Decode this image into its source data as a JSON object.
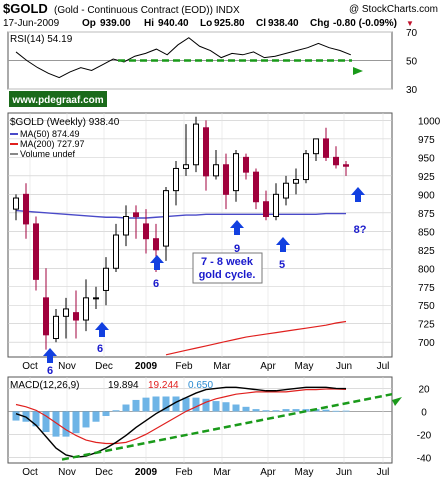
{
  "header": {
    "symbol": "$GOLD",
    "description": "(Gold - Continuous Contract (EOD)) INDX",
    "logo": "@ StockCharts.com",
    "date": "17-Jun-2009",
    "open_label": "Op",
    "open": "939.00",
    "high_label": "Hi",
    "high": "940.40",
    "low_label": "Lo",
    "low": "925.80",
    "close_label": "Cl",
    "close": "938.40",
    "change_label": "Chg",
    "change": "-0.80 (-0.09%)",
    "change_arrow": "▼"
  },
  "watermark": "www.pdegraaf.com",
  "colors": {
    "up_candle": "#000000",
    "down_candle": "#a0003c",
    "ma50": "#4a4ac8",
    "ma200": "#e0201e",
    "annotation": "#1a1acc",
    "arrow": "#1240e0",
    "green": "#1a9a1a",
    "grid": "#c8c8c8",
    "watermark_bg": "#1a6a1a",
    "macd_hist": "#6eb4e6"
  },
  "chart_data": [
    {
      "type": "line",
      "panel": "RSI",
      "title": "RSI(14) 54.19",
      "series": [
        {
          "name": "RSI(14)",
          "values": [
            56,
            50,
            45,
            41,
            38,
            42,
            45,
            43,
            47,
            51,
            49,
            53,
            55,
            58,
            54,
            61,
            66,
            60,
            57,
            52,
            55,
            54,
            56,
            52,
            53,
            55,
            57,
            59,
            62,
            59,
            57,
            54
          ]
        }
      ],
      "ylim": [
        30,
        70
      ],
      "ticks": [
        30,
        50,
        70
      ],
      "grid": true
    },
    {
      "type": "candlestick",
      "panel": "Price",
      "title": "$GOLD (Weekly) 938.40",
      "legend": [
        {
          "name": "MA(50)",
          "value": "874.49"
        },
        {
          "name": "MA(200)",
          "value": "727.97"
        },
        {
          "name": "Volume",
          "value": "undef"
        }
      ],
      "legend_placement": "top-left",
      "candles": [
        {
          "o": 880,
          "h": 900,
          "l": 865,
          "c": 895
        },
        {
          "o": 900,
          "h": 915,
          "l": 840,
          "c": 860
        },
        {
          "o": 860,
          "h": 870,
          "l": 770,
          "c": 785
        },
        {
          "o": 760,
          "h": 800,
          "l": 690,
          "c": 710
        },
        {
          "o": 705,
          "h": 745,
          "l": 700,
          "c": 735
        },
        {
          "o": 735,
          "h": 760,
          "l": 705,
          "c": 745
        },
        {
          "o": 740,
          "h": 770,
          "l": 705,
          "c": 730
        },
        {
          "o": 730,
          "h": 785,
          "l": 715,
          "c": 760
        },
        {
          "o": 760,
          "h": 775,
          "l": 745,
          "c": 760
        },
        {
          "o": 770,
          "h": 815,
          "l": 750,
          "c": 800
        },
        {
          "o": 800,
          "h": 860,
          "l": 795,
          "c": 845
        },
        {
          "o": 845,
          "h": 885,
          "l": 830,
          "c": 870
        },
        {
          "o": 875,
          "h": 885,
          "l": 840,
          "c": 870
        },
        {
          "o": 860,
          "h": 880,
          "l": 820,
          "c": 840
        },
        {
          "o": 840,
          "h": 860,
          "l": 795,
          "c": 825
        },
        {
          "o": 830,
          "h": 910,
          "l": 810,
          "c": 905
        },
        {
          "o": 905,
          "h": 945,
          "l": 885,
          "c": 935
        },
        {
          "o": 935,
          "h": 995,
          "l": 925,
          "c": 940
        },
        {
          "o": 940,
          "h": 1005,
          "l": 930,
          "c": 995
        },
        {
          "o": 990,
          "h": 1000,
          "l": 905,
          "c": 925
        },
        {
          "o": 925,
          "h": 960,
          "l": 920,
          "c": 940
        },
        {
          "o": 940,
          "h": 955,
          "l": 880,
          "c": 900
        },
        {
          "o": 905,
          "h": 960,
          "l": 890,
          "c": 955
        },
        {
          "o": 950,
          "h": 955,
          "l": 920,
          "c": 930
        },
        {
          "o": 930,
          "h": 935,
          "l": 880,
          "c": 890
        },
        {
          "o": 890,
          "h": 905,
          "l": 865,
          "c": 870
        },
        {
          "o": 870,
          "h": 915,
          "l": 865,
          "c": 900
        },
        {
          "o": 895,
          "h": 925,
          "l": 885,
          "c": 915
        },
        {
          "o": 915,
          "h": 935,
          "l": 900,
          "c": 920
        },
        {
          "o": 920,
          "h": 960,
          "l": 915,
          "c": 955
        },
        {
          "o": 955,
          "h": 975,
          "l": 945,
          "c": 975
        },
        {
          "o": 975,
          "h": 990,
          "l": 945,
          "c": 950
        },
        {
          "o": 950,
          "h": 965,
          "l": 935,
          "c": 940
        },
        {
          "o": 940,
          "h": 945,
          "l": 925,
          "c": 938
        }
      ],
      "ma50": [
        878,
        877,
        876,
        875,
        874,
        873,
        872,
        871,
        870,
        869,
        869,
        868,
        868,
        868,
        869,
        870,
        871,
        872,
        872,
        873,
        873,
        873,
        873,
        873,
        873,
        873,
        873,
        873,
        873,
        873,
        873,
        874,
        874,
        874
      ],
      "ma200": [
        null,
        null,
        null,
        null,
        null,
        null,
        null,
        null,
        null,
        null,
        null,
        null,
        null,
        null,
        null,
        683,
        686,
        689,
        692,
        695,
        698,
        701,
        704,
        707,
        709,
        711,
        713,
        715,
        717,
        719,
        721,
        723,
        726,
        728
      ],
      "ylim": [
        680,
        1010
      ],
      "yticks": [
        700,
        725,
        750,
        775,
        800,
        825,
        850,
        875,
        900,
        925,
        950,
        975,
        1000
      ],
      "xlabels": [
        "Oct",
        "Nov",
        "Dec",
        "2009",
        "Feb",
        "Mar",
        "Apr",
        "May",
        "Jun",
        "Jul"
      ],
      "annotations": {
        "arrow_labels": [
          "6",
          "6",
          "6",
          "9",
          "5",
          "8?"
        ],
        "box_text": [
          "7 - 8 week",
          "gold cycle."
        ]
      },
      "grid": true
    },
    {
      "type": "line",
      "panel": "MACD",
      "title": "MACD(12,26,9)",
      "readouts": [
        "19.894",
        "19.244",
        "0.650"
      ],
      "series": [
        {
          "name": "MACD",
          "values": [
            -2,
            -5,
            -12,
            -22,
            -32,
            -38,
            -40,
            -39,
            -36,
            -32,
            -27,
            -21,
            -14,
            -8,
            -2,
            3,
            8,
            12,
            16,
            19,
            20,
            21,
            21,
            20,
            19,
            18,
            18,
            19,
            20,
            21,
            21,
            21,
            20,
            19.9
          ]
        },
        {
          "name": "Signal",
          "values": [
            6,
            4,
            1,
            -4,
            -10,
            -16,
            -21,
            -25,
            -27,
            -28,
            -28,
            -27,
            -24,
            -20,
            -15,
            -10,
            -5,
            0,
            4,
            8,
            11,
            13,
            15,
            16,
            17,
            17,
            17,
            17,
            18,
            19,
            19,
            19.5,
            19.5,
            19.2
          ]
        },
        {
          "name": "Histogram",
          "values": [
            -8,
            -9,
            -13,
            -18,
            -22,
            -22,
            -19,
            -14,
            -9,
            -4,
            1,
            6,
            10,
            12,
            13,
            13,
            13,
            12,
            12,
            11,
            9,
            8,
            6,
            4,
            2,
            1,
            1,
            2,
            2,
            2,
            2,
            1.5,
            0.5,
            0.65
          ]
        }
      ],
      "ylim": [
        -45,
        30
      ],
      "yticks": [
        20,
        0,
        -20,
        -40
      ],
      "xlabels": [
        "Oct",
        "Nov",
        "Dec",
        "2009",
        "Feb",
        "Mar",
        "Apr",
        "May",
        "Jun",
        "Jul"
      ],
      "grid": true
    }
  ]
}
